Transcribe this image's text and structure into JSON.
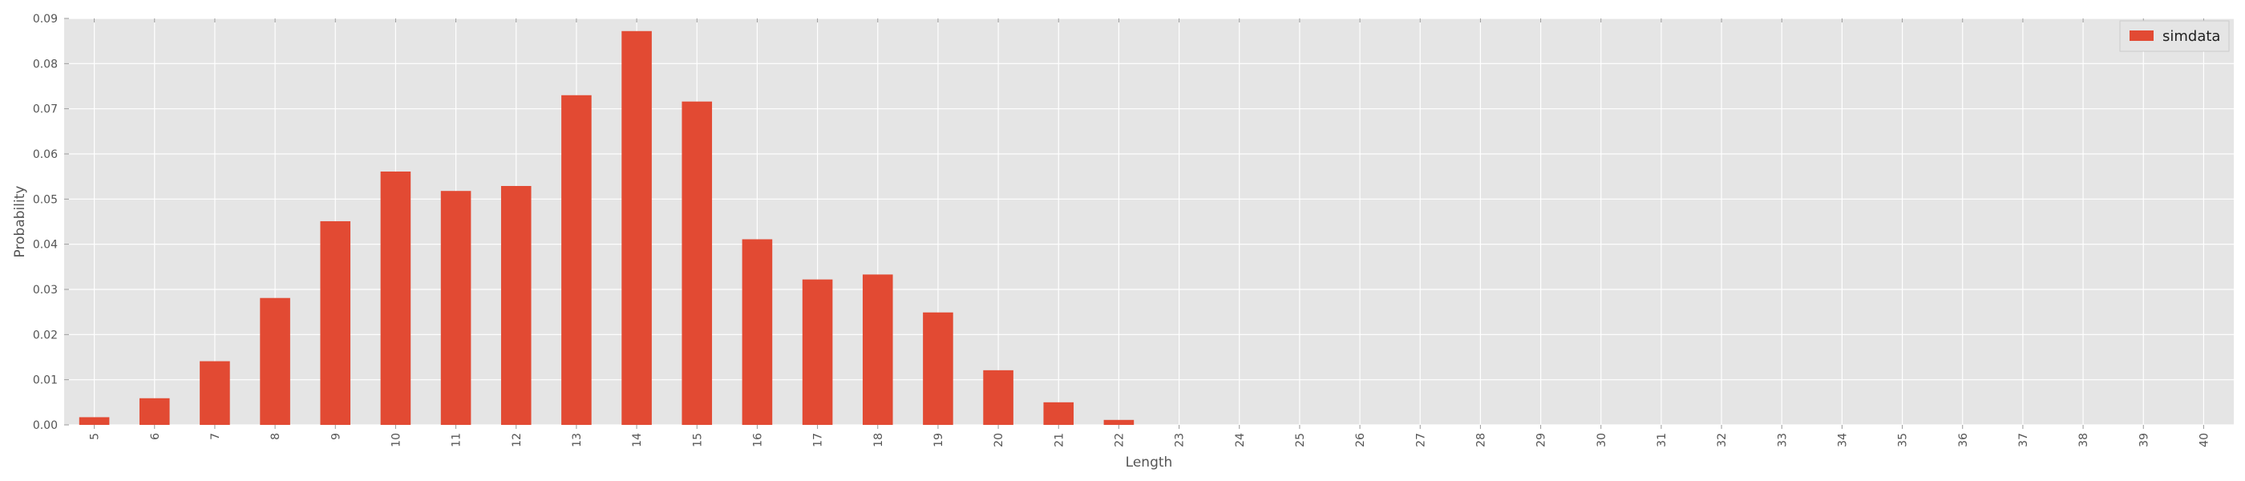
{
  "chart_data": {
    "type": "bar",
    "title": "",
    "xlabel": "Length",
    "ylabel": "Probability",
    "ylim": [
      0,
      0.09
    ],
    "yticks": [
      "0.00",
      "0.01",
      "0.02",
      "0.03",
      "0.04",
      "0.05",
      "0.06",
      "0.07",
      "0.08",
      "0.09"
    ],
    "grid": true,
    "legend_position": "top-right",
    "categories": [
      "5",
      "6",
      "7",
      "8",
      "9",
      "10",
      "11",
      "12",
      "13",
      "14",
      "15",
      "16",
      "17",
      "18",
      "19",
      "20",
      "21",
      "22",
      "23",
      "24",
      "25",
      "26",
      "27",
      "28",
      "29",
      "30",
      "31",
      "32",
      "33",
      "34",
      "35",
      "36",
      "37",
      "38",
      "39",
      "40"
    ],
    "series": [
      {
        "name": "simdata",
        "color": "#E24A33",
        "values": [
          0.0017,
          0.0059,
          0.0141,
          0.0281,
          0.0451,
          0.0561,
          0.0518,
          0.0529,
          0.073,
          0.0872,
          0.0716,
          0.0411,
          0.0322,
          0.0333,
          0.0249,
          0.0121,
          0.005,
          0.0011,
          0,
          0,
          0,
          0,
          0,
          0,
          0,
          0,
          0,
          0,
          0,
          0,
          0,
          0,
          0,
          0,
          0,
          0
        ]
      }
    ]
  },
  "style": {
    "plot_background": "#E5E5E5",
    "grid_color": "#FFFFFF",
    "text_color": "#555555"
  }
}
